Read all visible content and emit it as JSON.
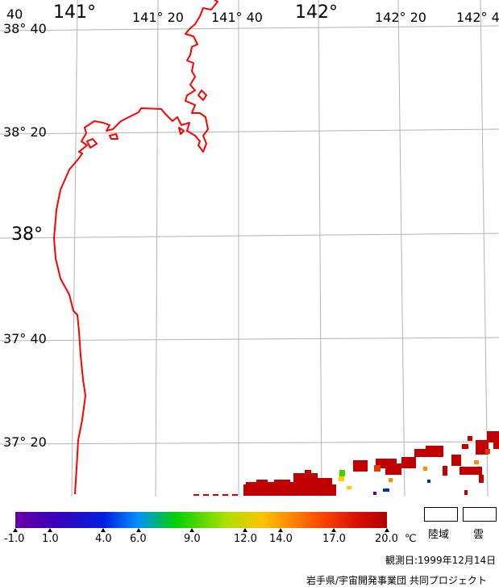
{
  "map": {
    "lon_labels": [
      "40",
      "141°",
      "141° 20",
      "141° 40",
      "142°",
      "142° 20",
      "142° 4"
    ],
    "lat_labels": [
      "38° 40",
      "38° 20",
      "38°",
      "37° 40",
      "37° 20"
    ],
    "coastline_color": "#ff0000",
    "grid_color": "#b4b4b4"
  },
  "legend": {
    "scale_ticks": [
      "-1.0",
      "1.0",
      "4.0",
      "6.0",
      "9.0",
      "12.0",
      "14.0",
      "17.0",
      "20.0"
    ],
    "unit": "℃",
    "land_label": "陸域",
    "cloud_label": "雲"
  },
  "footer": {
    "observation_date": "観測日:1999年12月14日",
    "credit": "岩手県/宇宙開発事業団 共同プロジェクト"
  }
}
